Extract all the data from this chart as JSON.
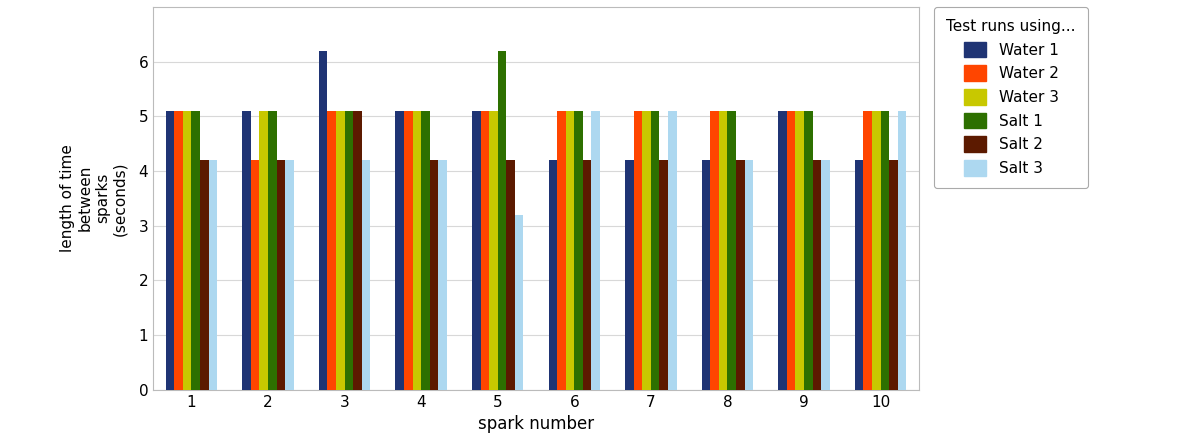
{
  "spark_numbers": [
    1,
    2,
    3,
    4,
    5,
    6,
    7,
    8,
    9,
    10
  ],
  "series": {
    "Water 1": [
      5.1,
      5.1,
      6.2,
      5.1,
      5.1,
      4.2,
      4.2,
      4.2,
      5.1,
      4.2
    ],
    "Water 2": [
      5.1,
      4.2,
      5.1,
      5.1,
      5.1,
      5.1,
      5.1,
      5.1,
      5.1,
      5.1
    ],
    "Water 3": [
      5.1,
      5.1,
      5.1,
      5.1,
      5.1,
      5.1,
      5.1,
      5.1,
      5.1,
      5.1
    ],
    "Salt 1": [
      5.1,
      5.1,
      5.1,
      5.1,
      6.2,
      5.1,
      5.1,
      5.1,
      5.1,
      5.1
    ],
    "Salt 2": [
      4.2,
      4.2,
      5.1,
      4.2,
      4.2,
      4.2,
      4.2,
      4.2,
      4.2,
      4.2
    ],
    "Salt 3": [
      4.2,
      4.2,
      4.2,
      4.2,
      3.2,
      5.1,
      5.1,
      4.2,
      4.2,
      5.1
    ]
  },
  "colors": {
    "Water 1": "#1F3474",
    "Water 2": "#FF4500",
    "Water 3": "#C8C800",
    "Salt 1": "#2D7000",
    "Salt 2": "#5C1A00",
    "Salt 3": "#ADD8F0"
  },
  "ylabel": "length of time\nbetween\nsparks\n(seconds)",
  "xlabel": "spark number",
  "legend_title": "Test runs using...",
  "ylim": [
    0,
    7
  ],
  "yticks": [
    0,
    1,
    2,
    3,
    4,
    5,
    6
  ],
  "bg_color": "#FFFFFF",
  "plot_bg_color": "#FFFFFF",
  "grid_color": "#D8D8D8"
}
